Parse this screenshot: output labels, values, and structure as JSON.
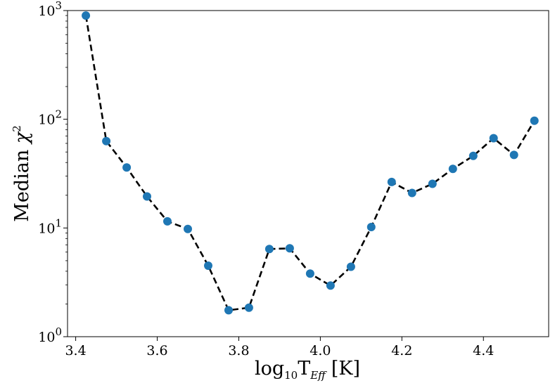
{
  "chart_data": {
    "type": "line",
    "xlabel": "log10TEff [K]",
    "xlabel_parts": {
      "base": "log",
      "sub": "10",
      "T": "T",
      "eff": "Eff",
      "unit": "[K]"
    },
    "ylabel": "Median χ2",
    "ylabel_parts": {
      "text": "Median ",
      "chi": "χ",
      "sup": "2"
    },
    "x_scale": "linear",
    "y_scale": "log",
    "xlim": [
      3.38,
      4.56
    ],
    "ylim": [
      1,
      1000
    ],
    "x_ticks": [
      {
        "value": 3.4,
        "label": "3.4"
      },
      {
        "value": 3.6,
        "label": "3.6"
      },
      {
        "value": 3.8,
        "label": "3.8"
      },
      {
        "value": 4.0,
        "label": "4.0"
      },
      {
        "value": 4.2,
        "label": "4.2"
      },
      {
        "value": 4.4,
        "label": "4.4"
      }
    ],
    "y_ticks": [
      {
        "value": 1,
        "base": "10",
        "exp": "0"
      },
      {
        "value": 10,
        "base": "10",
        "exp": "1"
      },
      {
        "value": 100,
        "base": "10",
        "exp": "2"
      },
      {
        "value": 1000,
        "base": "10",
        "exp": "3"
      }
    ],
    "grid": false,
    "series": [
      {
        "line_style": "dashed",
        "line_color": "#000000",
        "marker_color": "#1f77b4",
        "x": [
          3.425,
          3.475,
          3.525,
          3.575,
          3.625,
          3.675,
          3.725,
          3.775,
          3.825,
          3.875,
          3.925,
          3.975,
          4.025,
          4.075,
          4.125,
          4.175,
          4.225,
          4.275,
          4.325,
          4.375,
          4.425,
          4.475,
          4.525
        ],
        "y": [
          900,
          63,
          36,
          19.5,
          11.5,
          9.8,
          4.5,
          1.75,
          1.85,
          6.4,
          6.5,
          3.8,
          2.95,
          4.4,
          10.2,
          26.5,
          21,
          25.5,
          35,
          46,
          67,
          47,
          97
        ]
      }
    ]
  }
}
